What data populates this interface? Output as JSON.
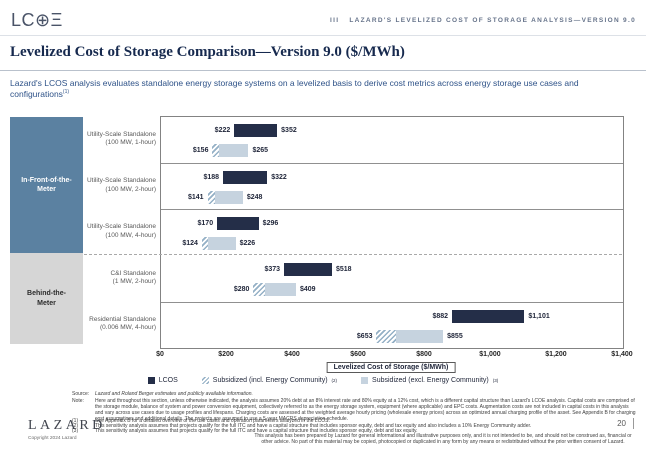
{
  "header": {
    "logo": "LC⊕Ξ",
    "section": "III",
    "report_title": "LAZARD'S LEVELIZED COST OF STORAGE ANALYSIS—VERSION 9.0"
  },
  "slide": {
    "title": "Levelized Cost of Storage Comparison—Version 9.0 ($/MWh)",
    "subtitle": "Lazard's LCOS analysis evaluates standalone energy storage systems on a levelized basis to derive cost metrics across energy storage use cases and configurations",
    "subtitle_footnote": "(1)"
  },
  "groups": [
    {
      "label": "In-Front-of-the-Meter"
    },
    {
      "label": "Behind-the-Meter"
    }
  ],
  "chart_data": {
    "type": "bar",
    "subtype": "horizontal-range",
    "xlabel": "Levelized Cost of Storage ($/MWh)",
    "xlim": [
      0,
      1400
    ],
    "tick_values": [
      0,
      200,
      400,
      600,
      800,
      1000,
      1200,
      1400
    ],
    "tick_labels": [
      "$0",
      "$200",
      "$400",
      "$600",
      "$800",
      "$1,000",
      "$1,200",
      "$1,400"
    ],
    "grid": false,
    "legend_position": "bottom",
    "legend": [
      {
        "label": "LCOS",
        "footnote": "",
        "swatch": "solid-dark",
        "color": "#242e48"
      },
      {
        "label": "Subsidized (incl. Energy Community)",
        "footnote": "(2)",
        "swatch": "hatched",
        "color": "#94b0c6"
      },
      {
        "label": "Subsidized (excl. Energy Community)",
        "footnote": "(3)",
        "swatch": "solid-light",
        "color": "#c6d3df"
      }
    ],
    "rows": [
      {
        "group": "In-Front-of-the-Meter",
        "label_line1": "Utility-Scale Standalone",
        "label_line2": "(100 MW, 1-hour)",
        "lcos_low": 222,
        "lcos_high": 352,
        "sub_low": 156,
        "sub_high": 265,
        "hatch_end": 177
      },
      {
        "group": "In-Front-of-the-Meter",
        "label_line1": "Utility-Scale Standalone",
        "label_line2": "(100 MW, 2-hour)",
        "lcos_low": 188,
        "lcos_high": 322,
        "sub_low": 141,
        "sub_high": 248,
        "hatch_end": 164
      },
      {
        "group": "In-Front-of-the-Meter",
        "label_line1": "Utility-Scale Standalone",
        "label_line2": "(100 MW, 4-hour)",
        "lcos_low": 170,
        "lcos_high": 296,
        "sub_low": 124,
        "sub_high": 226,
        "hatch_end": 142
      },
      {
        "group": "Behind-the-Meter",
        "label_line1": "C&I Standalone",
        "label_line2": "(1 MW, 2-hour)",
        "lcos_low": 373,
        "lcos_high": 518,
        "sub_low": 280,
        "sub_high": 409,
        "hatch_end": 314
      },
      {
        "group": "Behind-the-Meter",
        "label_line1": "Residential Standalone",
        "label_line2": "(0.006 MW, 4-hour)",
        "lcos_low": 882,
        "lcos_high": 1101,
        "sub_low": 653,
        "sub_high": 855,
        "hatch_end": 713
      }
    ]
  },
  "colors": {
    "lcos_bar": "#242e48",
    "subsidized_bar": "#c6d3df",
    "hatch_stripe": "#94b0c6",
    "group_blue": "#5b81a1",
    "group_gray": "#d6d6d6",
    "title_navy": "#16294e",
    "subtitle_blue": "#2e5288"
  },
  "footer": {
    "source_label": "Source:",
    "source_text": "Lazard and Roland Berger estimates and publicly available information.",
    "note_label": "Note:",
    "note_text": "Here and throughout this section, unless otherwise indicated, the analysis assumes 20% debt at an 8% interest rate and 80% equity at a 12% cost, which is a different capital structure than Lazard's LCOE analysis. Capital costs are comprised of the storage module, balance of system and power conversion equipment, collectively referred to as the energy storage system, equipment (where applicable) and EPC costs. Augmentation costs are not included in capital costs in this analysis and vary across use cases due to usage profiles and lifespans. Charging costs are assessed at the weighted average hourly pricing (wholesale energy prices) across an optimized annual charging profile of the asset. See Appendix B for charging cost assumptions and additional details. The projects are assumed to use a 5-year MACRS depreciation schedule.",
    "footnotes": [
      {
        "num": "(1)",
        "text": "See Appendix B for a detailed overview of the use cases and operation parameters analyzed in the LCOS."
      },
      {
        "num": "(2)",
        "text": "This sensitivity analysis assumes that projects qualify for the full ITC and have a capital structure that includes sponsor equity, debt and tax equity and also includes a 10% Energy Community adder."
      },
      {
        "num": "(3)",
        "text": "This sensitivity analysis assumes that projects qualify for the full ITC and have a capital structure that includes sponsor equity, debt and tax equity."
      }
    ],
    "disclaimer": "This analysis has been prepared by Lazard for general informational and illustrative purposes only, and it is not intended to be, and should not be construed as, financial or other advice. No part of this material may be copied, photocopied or duplicated in any form by any means or redistributed without the prior written consent of Lazard.",
    "page_number": "20",
    "brand": "LAZARD",
    "copyright": "Copyright 2024 Lazard"
  }
}
